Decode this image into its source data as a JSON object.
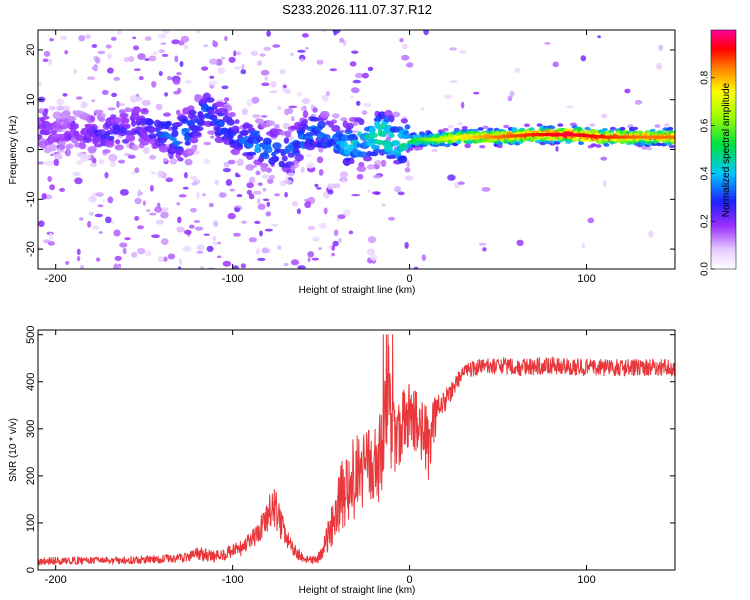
{
  "title": "S233.2026.111.07.37.R12",
  "chart_data": [
    {
      "type": "heatmap",
      "xlabel": "Height of straight line (km)",
      "ylabel": "Frequency (Hz)",
      "xlim": [
        -210,
        150
      ],
      "ylim": [
        -24,
        24
      ],
      "xticks": [
        -200,
        -100,
        0,
        100
      ],
      "yticks": [
        -20,
        -10,
        0,
        10,
        20
      ],
      "grid": false,
      "ridge": {
        "x": [
          -190,
          -170,
          -150,
          -130,
          -115,
          -100,
          -85,
          -70,
          -55,
          -45,
          -35,
          -25,
          -15,
          -5,
          5,
          15,
          30,
          50,
          70,
          90,
          110,
          130,
          150
        ],
        "freq": [
          4,
          3,
          5,
          2,
          8,
          3,
          1,
          -1,
          4,
          2,
          1,
          2,
          3,
          1,
          2,
          2,
          2.5,
          2.5,
          3,
          3,
          2.5,
          2.5,
          2.5
        ],
        "amplitude": [
          0.2,
          0.25,
          0.25,
          0.35,
          0.3,
          0.3,
          0.35,
          0.3,
          0.35,
          0.3,
          0.4,
          0.45,
          0.5,
          0.45,
          0.55,
          0.65,
          0.75,
          0.85,
          0.9,
          0.95,
          0.9,
          0.85,
          0.85
        ]
      },
      "colorbar": {
        "label": "Normalized spectral amplitude",
        "range": [
          0,
          1
        ],
        "ticks": [
          "0.0",
          "0.2",
          "0.4",
          "0.6",
          "0.8"
        ]
      }
    },
    {
      "type": "line",
      "xlabel": "Height of straight line (km)",
      "ylabel": "SNR (10 * v/v)",
      "xlim": [
        -210,
        150
      ],
      "ylim": [
        0,
        510
      ],
      "xticks": [
        -200,
        -100,
        0,
        100
      ],
      "yticks": [
        0,
        100,
        200,
        300,
        400,
        500
      ],
      "series_color": "#e8383b",
      "series": [
        {
          "name": "SNR",
          "x": [
            -210,
            -190,
            -170,
            -150,
            -130,
            -120,
            -110,
            -100,
            -95,
            -90,
            -85,
            -80,
            -77,
            -75,
            -72,
            -70,
            -65,
            -60,
            -55,
            -50,
            -45,
            -40,
            -35,
            -30,
            -25,
            -20,
            -15,
            -12,
            -10,
            -5,
            0,
            5,
            10,
            15,
            20,
            25,
            30,
            35,
            40,
            50,
            60,
            80,
            100,
            120,
            150
          ],
          "y": [
            18,
            20,
            20,
            22,
            25,
            35,
            28,
            40,
            45,
            60,
            80,
            110,
            140,
            120,
            90,
            70,
            40,
            25,
            20,
            30,
            80,
            150,
            180,
            200,
            210,
            220,
            250,
            400,
            280,
            300,
            330,
            310,
            260,
            330,
            360,
            390,
            420,
            425,
            430,
            435,
            430,
            435,
            430,
            430,
            430
          ],
          "noise": [
            8,
            8,
            8,
            8,
            10,
            15,
            12,
            15,
            18,
            20,
            25,
            40,
            50,
            45,
            30,
            20,
            15,
            10,
            8,
            15,
            40,
            70,
            80,
            90,
            90,
            90,
            100,
            110,
            90,
            80,
            70,
            70,
            90,
            40,
            25,
            20,
            18,
            18,
            18,
            18,
            18,
            18,
            18,
            18,
            18
          ]
        }
      ]
    }
  ]
}
